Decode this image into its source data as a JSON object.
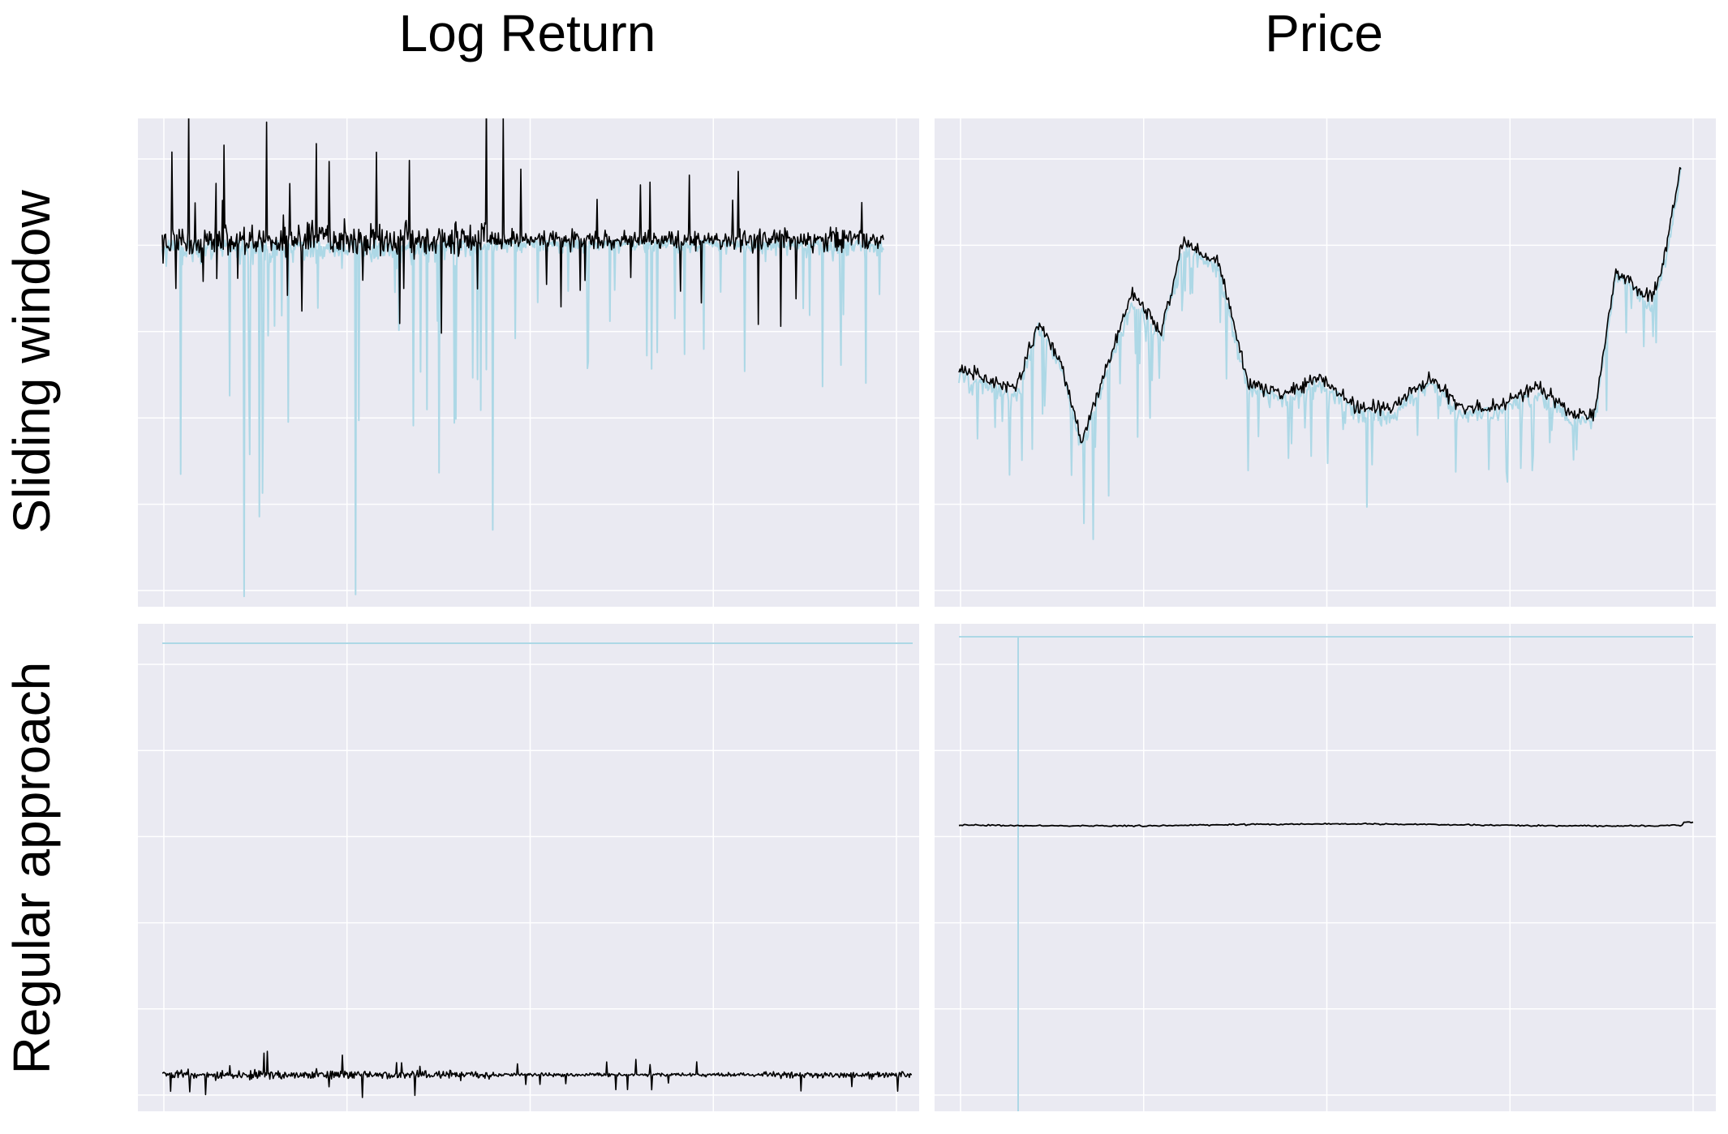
{
  "figure": {
    "column_titles": [
      "Log Return",
      "Price"
    ],
    "row_titles": [
      "Sliding window",
      "Regular approach"
    ],
    "colors": {
      "panel_background": "#eaeaf2",
      "grid": "#ffffff",
      "series_primary": "#000000",
      "series_secondary": "#add8e6"
    }
  },
  "chart_data": [
    {
      "type": "line",
      "row": "Sliding window",
      "column": "Log Return",
      "grid": true,
      "tick_labels_shown": false,
      "series": [
        {
          "role": "foreground",
          "color": "#000000",
          "style": "dense oscillating trace, sustained high volatility with large spikes, narrowing in middle section, renewed spikes near the end"
        },
        {
          "role": "background",
          "color": "#add8e6",
          "style": "jagged bands extending far below the foreground trace, deepest troughs in the first third"
        }
      ]
    },
    {
      "type": "line",
      "row": "Sliding window",
      "column": "Price",
      "grid": true,
      "tick_labels_shown": false,
      "series": [
        {
          "role": "foreground",
          "color": "#000000",
          "style": "fluctuating price path: early decline, recovery to a peak, long sideways drift, sharp rise at the end"
        },
        {
          "role": "background",
          "color": "#add8e6",
          "style": "jagged band trailing just below the price path with deep downward spikes"
        }
      ]
    },
    {
      "type": "line",
      "row": "Regular approach",
      "column": "Log Return",
      "grid": true,
      "tick_labels_shown": false,
      "series": [
        {
          "role": "foreground",
          "color": "#000000",
          "style": "small oscillating trace near the bottom of the panel"
        },
        {
          "role": "background",
          "color": "#add8e6",
          "style": "flat horizontal line near the top of the panel"
        }
      ]
    },
    {
      "type": "line",
      "row": "Regular approach",
      "column": "Price",
      "grid": true,
      "tick_labels_shown": false,
      "series": [
        {
          "role": "foreground",
          "color": "#000000",
          "style": "nearly flat line in the upper part of the panel"
        },
        {
          "role": "background",
          "color": "#add8e6",
          "style": "flat horizontal line at the top of the panel with a single vertical line near the left edge"
        }
      ]
    }
  ]
}
